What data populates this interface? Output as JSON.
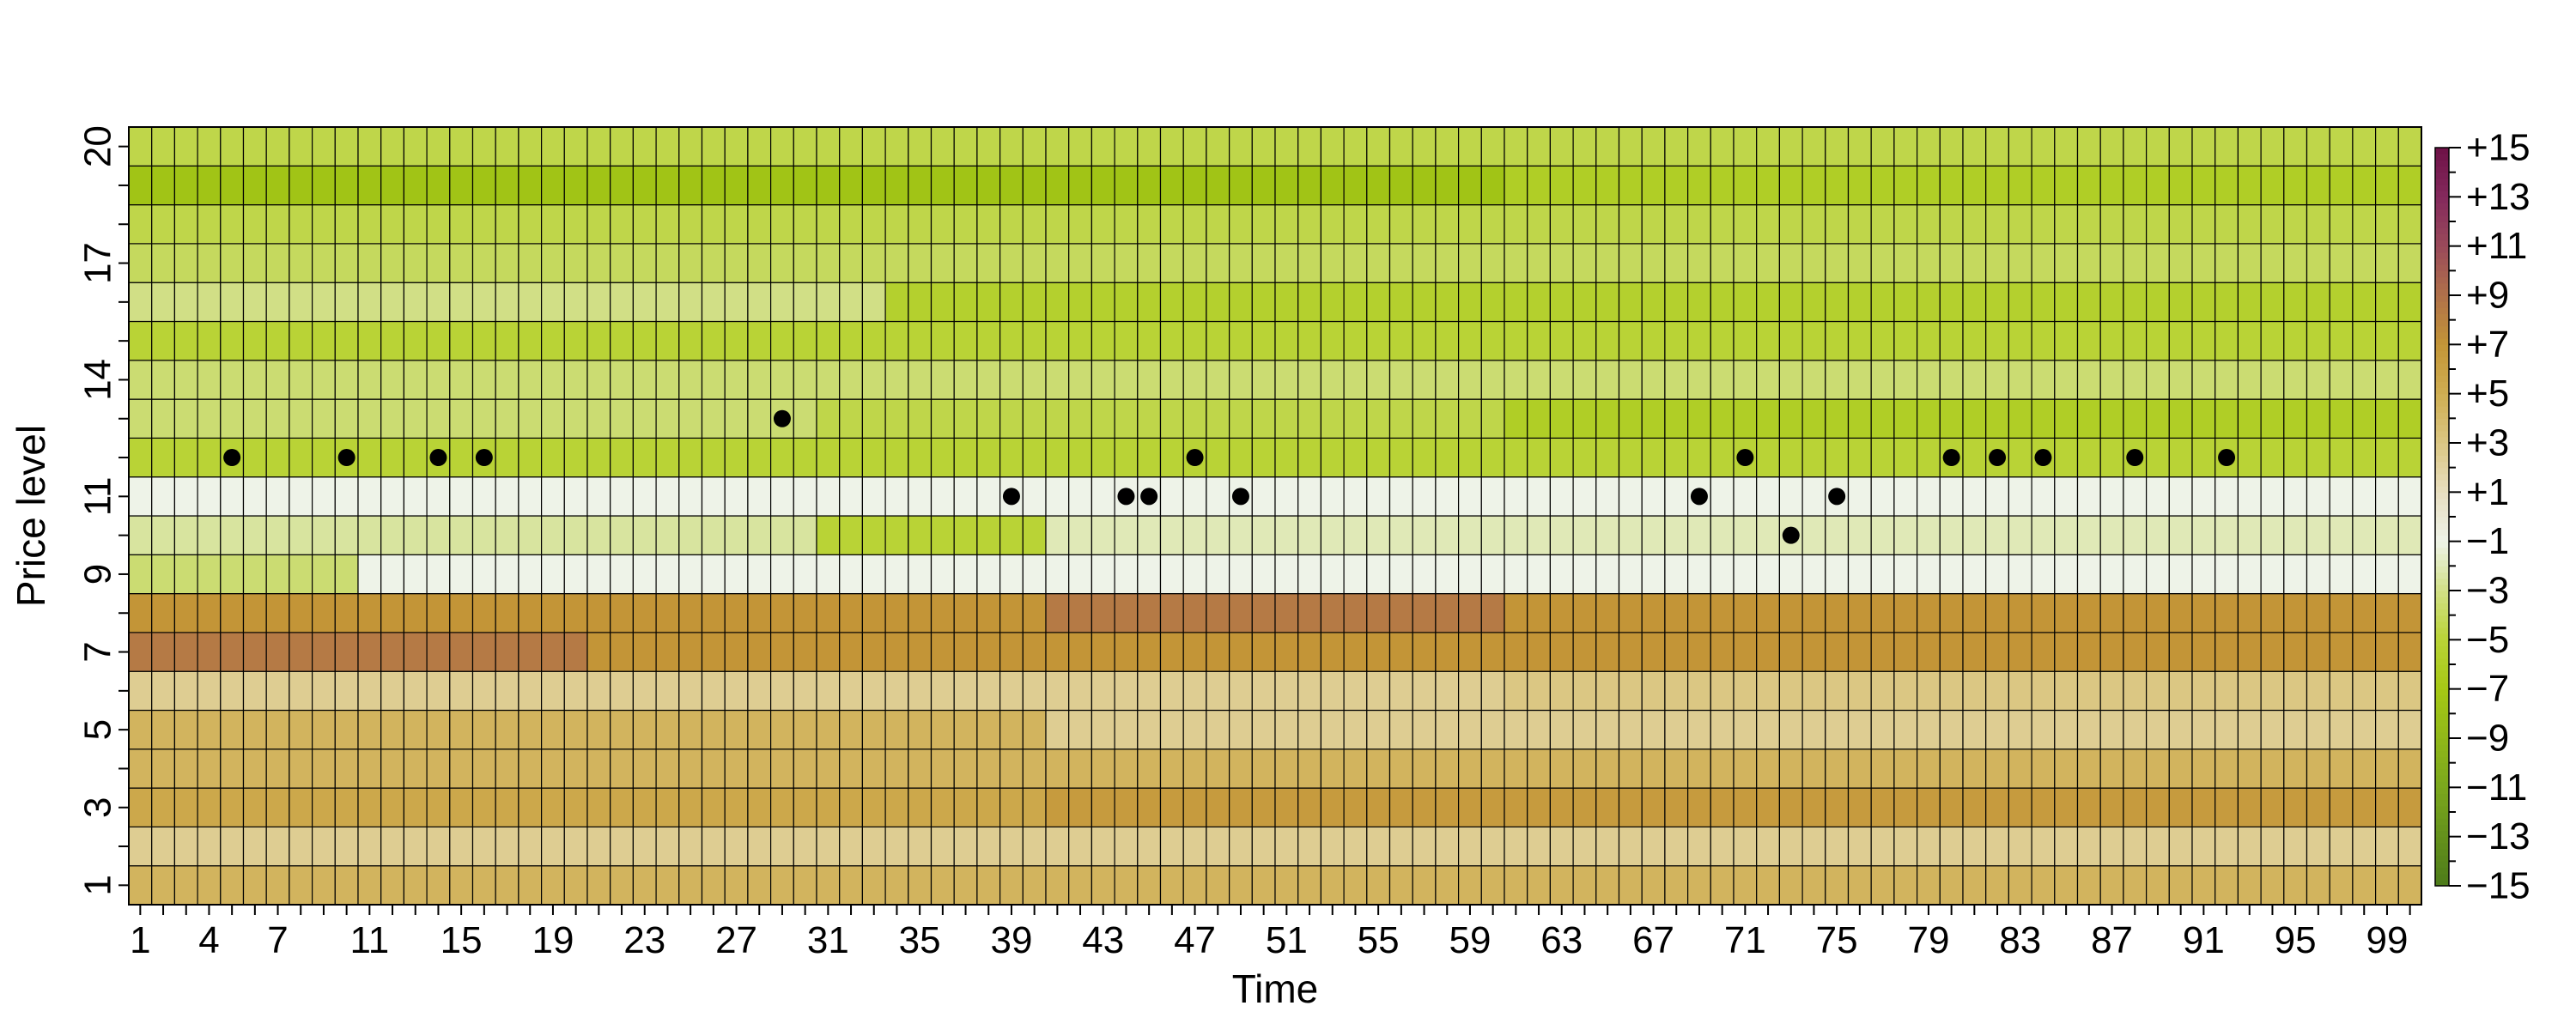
{
  "chart_data": {
    "type": "heatmap",
    "xlabel": "Time",
    "ylabel": "Price level",
    "x_range": [
      1,
      100
    ],
    "y_range": [
      1,
      20
    ],
    "x_tick_labels": [
      "1",
      "4",
      "7",
      "11",
      "15",
      "19",
      "23",
      "27",
      "31",
      "35",
      "39",
      "43",
      "47",
      "51",
      "55",
      "59",
      "63",
      "67",
      "71",
      "75",
      "79",
      "83",
      "87",
      "91",
      "95",
      "99"
    ],
    "y_tick_labels": [
      "1",
      "3",
      "5",
      "7",
      "9",
      "11",
      "14",
      "17",
      "20"
    ],
    "colorbar": {
      "min": -15,
      "max": 15,
      "tick_labels": [
        "+15",
        "+13",
        "+11",
        "+9",
        "+7",
        "+5",
        "+3",
        "+1",
        "−1",
        "−3",
        "−5",
        "−7",
        "−9",
        "−11",
        "−13",
        "−15"
      ],
      "palette": [
        {
          "value": -15,
          "color": "#4d7b1a"
        },
        {
          "value": -11,
          "color": "#7ba71d"
        },
        {
          "value": -7,
          "color": "#a6c815"
        },
        {
          "value": -5,
          "color": "#b9d336"
        },
        {
          "value": -3,
          "color": "#d1df86"
        },
        {
          "value": -1,
          "color": "#eef3e8"
        },
        {
          "value": 1,
          "color": "#e8dec0"
        },
        {
          "value": 3,
          "color": "#dbc783"
        },
        {
          "value": 5,
          "color": "#cfae52"
        },
        {
          "value": 7,
          "color": "#c39537"
        },
        {
          "value": 9,
          "color": "#b0714a"
        },
        {
          "value": 11,
          "color": "#9a4a5a"
        },
        {
          "value": 13,
          "color": "#84295c"
        },
        {
          "value": 15,
          "color": "#6e1247"
        }
      ]
    },
    "level_segments": [
      {
        "level": 1,
        "segments": [
          [
            1,
            100,
            4.5
          ]
        ]
      },
      {
        "level": 2,
        "segments": [
          [
            1,
            100,
            2.5
          ]
        ]
      },
      {
        "level": 3,
        "segments": [
          [
            1,
            40,
            5.5
          ],
          [
            41,
            100,
            6.5
          ]
        ]
      },
      {
        "level": 4,
        "segments": [
          [
            1,
            100,
            4.5
          ]
        ]
      },
      {
        "level": 5,
        "segments": [
          [
            1,
            40,
            4.5
          ],
          [
            41,
            100,
            2.5
          ]
        ]
      },
      {
        "level": 6,
        "segments": [
          [
            1,
            60,
            2.5
          ],
          [
            61,
            100,
            3.0
          ]
        ]
      },
      {
        "level": 7,
        "segments": [
          [
            1,
            20,
            8.5
          ],
          [
            21,
            100,
            7.0
          ]
        ]
      },
      {
        "level": 8,
        "segments": [
          [
            1,
            40,
            7.0
          ],
          [
            41,
            60,
            8.5
          ],
          [
            61,
            100,
            7.0
          ]
        ]
      },
      {
        "level": 9,
        "segments": [
          [
            1,
            10,
            -3.5
          ],
          [
            11,
            100,
            -1.0
          ]
        ]
      },
      {
        "level": 10,
        "segments": [
          [
            1,
            30,
            -2.5
          ],
          [
            31,
            40,
            -5.0
          ],
          [
            41,
            100,
            -2.0
          ]
        ]
      },
      {
        "level": 11,
        "segments": [
          [
            1,
            100,
            -1.0
          ]
        ]
      },
      {
        "level": 12,
        "segments": [
          [
            1,
            100,
            -5.0
          ]
        ]
      },
      {
        "level": 13,
        "segments": [
          [
            1,
            30,
            -3.5
          ],
          [
            31,
            60,
            -4.5
          ],
          [
            61,
            100,
            -6.0
          ]
        ]
      },
      {
        "level": 14,
        "segments": [
          [
            1,
            100,
            -3.5
          ]
        ]
      },
      {
        "level": 15,
        "segments": [
          [
            1,
            100,
            -5.0
          ]
        ]
      },
      {
        "level": 16,
        "segments": [
          [
            1,
            33,
            -3.0
          ],
          [
            34,
            100,
            -5.5
          ]
        ]
      },
      {
        "level": 17,
        "segments": [
          [
            1,
            100,
            -4.0
          ]
        ]
      },
      {
        "level": 18,
        "segments": [
          [
            1,
            100,
            -4.5
          ]
        ]
      },
      {
        "level": 19,
        "segments": [
          [
            1,
            60,
            -7.5
          ],
          [
            61,
            100,
            -6.0
          ]
        ]
      },
      {
        "level": 20,
        "segments": [
          [
            1,
            100,
            -4.5
          ]
        ]
      }
    ],
    "points": [
      {
        "x": 5,
        "y": 12
      },
      {
        "x": 10,
        "y": 12
      },
      {
        "x": 14,
        "y": 12
      },
      {
        "x": 16,
        "y": 12
      },
      {
        "x": 29,
        "y": 13
      },
      {
        "x": 39,
        "y": 11
      },
      {
        "x": 44,
        "y": 11
      },
      {
        "x": 45,
        "y": 11
      },
      {
        "x": 47,
        "y": 12
      },
      {
        "x": 49,
        "y": 11
      },
      {
        "x": 69,
        "y": 11
      },
      {
        "x": 71,
        "y": 12
      },
      {
        "x": 73,
        "y": 10
      },
      {
        "x": 75,
        "y": 11
      },
      {
        "x": 80,
        "y": 12
      },
      {
        "x": 82,
        "y": 12
      },
      {
        "x": 84,
        "y": 12
      },
      {
        "x": 88,
        "y": 12
      },
      {
        "x": 92,
        "y": 12
      }
    ],
    "grid": true,
    "legend": "colorbar-right"
  }
}
